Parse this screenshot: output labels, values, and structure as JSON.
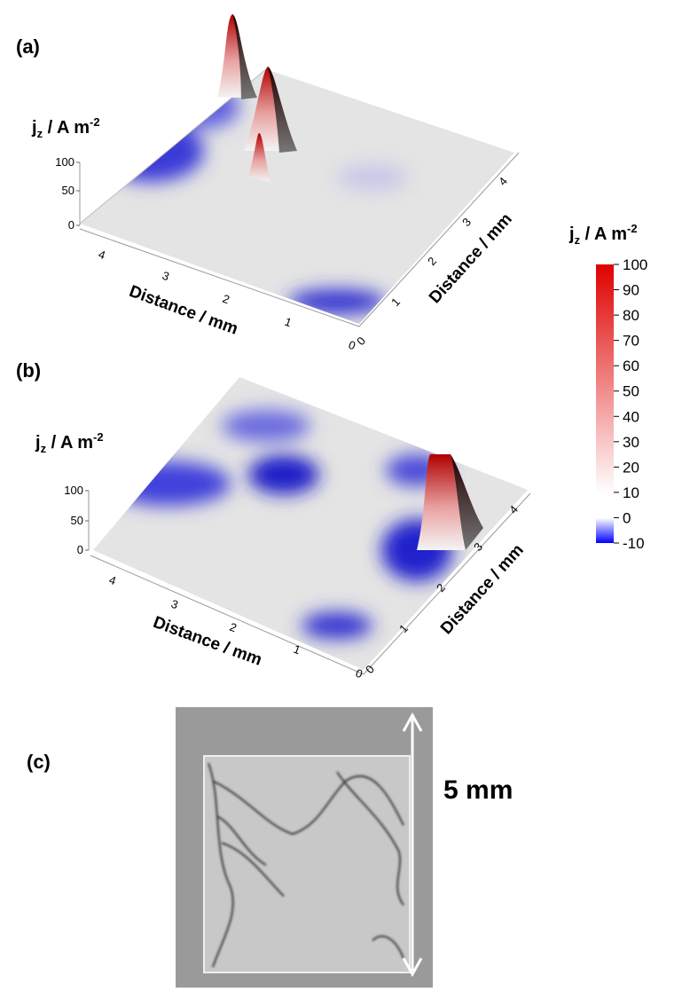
{
  "panels": [
    {
      "label": "(a)",
      "z_axis": {
        "title": {
          "symbol": "j",
          "subscript": "z",
          "unit": " / A m",
          "exponent": "-2"
        },
        "ticks": [
          0,
          50,
          100
        ]
      },
      "x_axis": {
        "title": "Distance / mm",
        "ticks": [
          4,
          3,
          2,
          1,
          0
        ]
      },
      "y_axis": {
        "title": "Distance / mm",
        "ticks": [
          0,
          1,
          2,
          3,
          4
        ]
      }
    },
    {
      "label": "(b)",
      "z_axis": {
        "title": {
          "symbol": "j",
          "subscript": "z",
          "unit": " / A m",
          "exponent": "-2"
        },
        "ticks": [
          0,
          50,
          100
        ]
      },
      "x_axis": {
        "title": "Distance / mm",
        "ticks": [
          4,
          3,
          2,
          1,
          0
        ]
      },
      "y_axis": {
        "title": "Distance / mm",
        "ticks": [
          0,
          1,
          2,
          3,
          4
        ]
      }
    }
  ],
  "colorbar": {
    "title": {
      "symbol": "j",
      "subscript": "z",
      "unit": " / A m",
      "exponent": "-2"
    },
    "range": [
      -10,
      100
    ],
    "ticks": [
      100,
      90,
      80,
      70,
      60,
      50,
      40,
      30,
      20,
      10,
      0,
      -10
    ]
  },
  "photo": {
    "label": "(c)",
    "scale_label": "5 mm"
  }
}
